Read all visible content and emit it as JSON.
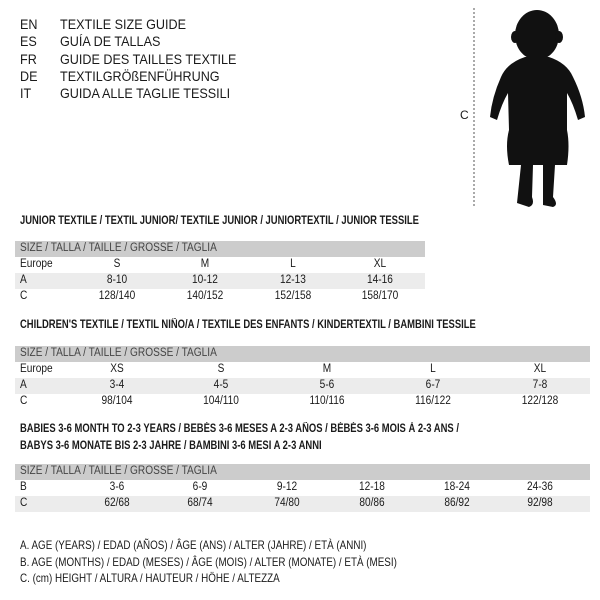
{
  "languages": [
    {
      "code": "EN",
      "text": "TEXTILE SIZE GUIDE"
    },
    {
      "code": "ES",
      "text": "GUÍA DE TALLAS"
    },
    {
      "code": "FR",
      "text": "GUIDE DES TAILLES TEXTILE"
    },
    {
      "code": "DE",
      "text": "TEXTILGRÖßENFÜHRUNG"
    },
    {
      "code": "IT",
      "text": "GUIDA ALLE TAGLIE TESSILI"
    }
  ],
  "figure": {
    "measure_label": "C",
    "icon": "baby-silhouette-icon"
  },
  "junior": {
    "title": "JUNIOR TEXTILE / TEXTIL JUNIOR/ TEXTILE JUNIOR / JUNIORTEXTIL / JUNIOR TESSILE",
    "header": "SIZE / TALLA / TAILLE / GRÖSSE / TAGLIA",
    "rows": [
      {
        "label": "Europe",
        "values": [
          "S",
          "M",
          "L",
          "XL"
        ]
      },
      {
        "label": "A",
        "values": [
          "8-10",
          "10-12",
          "12-13",
          "14-16"
        ]
      },
      {
        "label": "C",
        "values": [
          "128/140",
          "140/152",
          "152/158",
          "158/170"
        ]
      }
    ]
  },
  "children": {
    "title": "CHILDREN'S TEXTILE / TEXTIL NIÑO/A / TEXTILE DES ENFANTS / KINDERTEXTIL / BAMBINI TESSILE",
    "header": "SIZE / TALLA / TAILLE / GRÖSSE / TAGLIA",
    "rows": [
      {
        "label": "Europe",
        "values": [
          "XS",
          "S",
          "M",
          "L",
          "XL"
        ]
      },
      {
        "label": "A",
        "values": [
          "3-4",
          "4-5",
          "5-6",
          "6-7",
          "7-8"
        ]
      },
      {
        "label": "C",
        "values": [
          "98/104",
          "104/110",
          "110/116",
          "116/122",
          "122/128"
        ]
      }
    ]
  },
  "babies": {
    "title_line1": "BABIES 3-6 MONTH TO 2-3 YEARS / BEBÉS 3-6 MESES A 2-3 AÑOS / BÉBÉS 3-6 MOIS À 2-3 ANS /",
    "title_line2": "BABYS 3-6 MONATE BIS 2-3 JAHRE / BAMBINI 3-6 MESI A 2-3 ANNI",
    "header": "SIZE / TALLA / TAILLE / GRÖSSE / TAGLIA",
    "rows": [
      {
        "label": "B",
        "values": [
          "3-6",
          "6-9",
          "9-12",
          "12-18",
          "18-24",
          "24-36"
        ]
      },
      {
        "label": "C",
        "values": [
          "62/68",
          "68/74",
          "74/80",
          "80/86",
          "86/92",
          "92/98"
        ]
      }
    ]
  },
  "legend": [
    "A. AGE (YEARS) / EDAD (AÑOS) / ÂGE (ANS) / ALTER (JAHRE) / ETÀ (ANNI)",
    "B. AGE (MONTHS) / EDAD (MESES) / ÂGE (MOIS) / ALTER (MONATE) / ETÀ (MESI)",
    "C. (cm) HEIGHT / ALTURA / HAUTEUR / HÖHE / ALTEZZA"
  ]
}
